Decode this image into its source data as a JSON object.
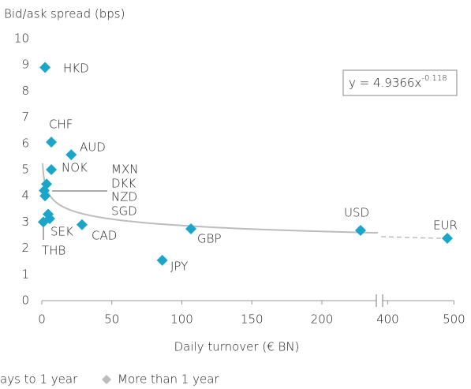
{
  "chart_data": {
    "type": "scatter",
    "y_label": "Bid/ask spread (bps)",
    "x_label": "Daily turnover (€ BN)",
    "xlim": [
      0,
      500
    ],
    "xbreak": [
      240,
      390
    ],
    "ylim": [
      0,
      10
    ],
    "xticks": [
      0,
      50,
      100,
      150,
      200,
      400,
      500
    ],
    "yticks": [
      0,
      1,
      2,
      3,
      4,
      5,
      6,
      7,
      8,
      9,
      10
    ],
    "grid": false,
    "series": [
      {
        "name": "More than 1 year",
        "color": "#1ba6c9",
        "labels": [
          "HKD",
          "CHF",
          "AUD",
          "NOK",
          "MXN",
          "DKK",
          "NZD",
          "SGD",
          "SEK",
          "THB",
          "CAD",
          "GBP",
          "JPY",
          "USD",
          "EUR"
        ],
        "x": [
          2.3,
          6.8,
          21,
          6.8,
          3.4,
          1.7,
          2.3,
          4.5,
          5.6,
          1.1,
          28.7,
          106.5,
          86,
          227.6,
          490
        ],
        "values": [
          8.9,
          6.05,
          5.57,
          5.0,
          4.45,
          4.2,
          4.0,
          3.3,
          3.13,
          3.0,
          2.9,
          2.74,
          1.54,
          2.68,
          2.38
        ]
      }
    ],
    "trend": {
      "label": "y = 4.9366x",
      "exponent_label": "-0.118",
      "a": 4.9366,
      "b": -0.118,
      "color": "#bdbdbd"
    },
    "legend": [
      {
        "label": "ays to 1 year"
      },
      {
        "label": "More than 1 year",
        "color": "#bdbdbd"
      }
    ]
  }
}
